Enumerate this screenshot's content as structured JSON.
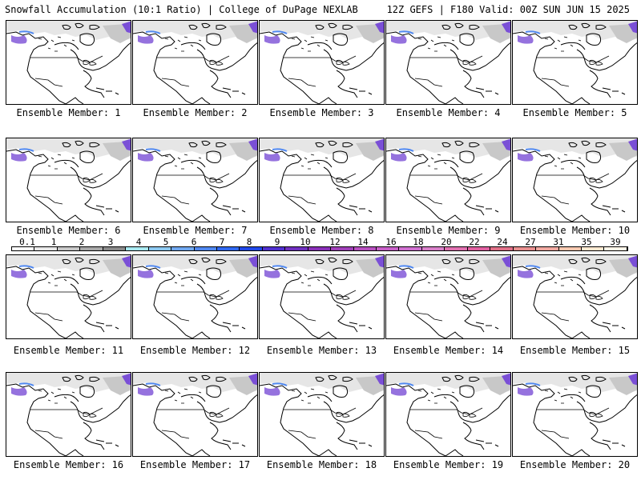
{
  "header": {
    "left_title": "Snowfall Accumulation (10:1 Ratio) | College of DuPage NEXLAB",
    "right_title": "12Z GEFS | F180 Valid: 00Z SUN JUN 15 2025"
  },
  "legend": {
    "labels": [
      "0.1",
      "1",
      "2",
      "3",
      "4",
      "5",
      "6",
      "7",
      "8",
      "9",
      "10",
      "12",
      "14",
      "16",
      "18",
      "20",
      "22",
      "24",
      "27",
      "31",
      "35",
      "39"
    ],
    "colors": [
      "#ffffff",
      "#e8e8e8",
      "#c8c8c8",
      "#a8a8a8",
      "#8a8a8a",
      "#a8e8f0",
      "#8cc8f0",
      "#70a8f0",
      "#5088f0",
      "#3068f0",
      "#2048e8",
      "#5030d0",
      "#7030c0",
      "#8a30b8",
      "#a040b8",
      "#b850c0",
      "#c860c8",
      "#d070d0",
      "#d880c8",
      "#e070b0",
      "#e060a0",
      "#e07088",
      "#e89090",
      "#f0a8a0",
      "#f8c8b0",
      "#fde8d0",
      "#fff6e8"
    ]
  },
  "panels": [
    {
      "caption": "Ensemble Member: 1"
    },
    {
      "caption": "Ensemble Member: 2"
    },
    {
      "caption": "Ensemble Member: 3"
    },
    {
      "caption": "Ensemble Member: 4"
    },
    {
      "caption": "Ensemble Member: 5"
    },
    {
      "caption": "Ensemble Member: 6"
    },
    {
      "caption": "Ensemble Member: 7"
    },
    {
      "caption": "Ensemble Member: 8"
    },
    {
      "caption": "Ensemble Member: 9"
    },
    {
      "caption": "Ensemble Member: 10"
    },
    {
      "caption": "Ensemble Member: 11"
    },
    {
      "caption": "Ensemble Member: 12"
    },
    {
      "caption": "Ensemble Member: 13"
    },
    {
      "caption": "Ensemble Member: 14"
    },
    {
      "caption": "Ensemble Member: 15"
    },
    {
      "caption": "Ensemble Member: 16"
    },
    {
      "caption": "Ensemble Member: 17"
    },
    {
      "caption": "Ensemble Member: 18"
    },
    {
      "caption": "Ensemble Member: 19"
    },
    {
      "caption": "Ensemble Member: 20"
    }
  ]
}
